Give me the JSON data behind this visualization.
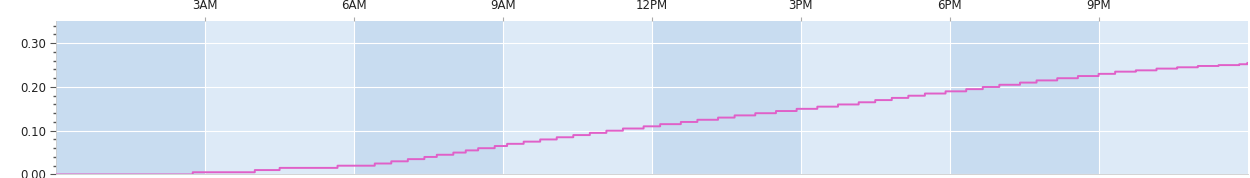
{
  "title": "",
  "xlabel": "",
  "ylabel": "",
  "xlim": [
    0,
    1440
  ],
  "ylim": [
    0.0,
    0.35
  ],
  "yticks": [
    0.0,
    0.1,
    0.2,
    0.3
  ],
  "ytick_labels": [
    "0.00",
    "0.10",
    "0.20",
    "0.30"
  ],
  "xticks": [
    180,
    360,
    540,
    720,
    900,
    1080,
    1260
  ],
  "xtick_labels": [
    "3AM",
    "6AM",
    "9AM",
    "12PM",
    "3PM",
    "6PM",
    "9PM"
  ],
  "line_color": "#e060c8",
  "line_width": 1.4,
  "bg_color": "#ddeaf7",
  "fig_bg_color": "#ffffff",
  "grid_color": "#ffffff",
  "band_colors": [
    "#c8dcf0",
    "#ddeaf7"
  ],
  "band_edges": [
    0,
    180,
    360,
    540,
    720,
    900,
    1080,
    1260,
    1440
  ],
  "step_times": [
    0,
    150,
    165,
    210,
    240,
    255,
    270,
    295,
    315,
    340,
    360,
    385,
    405,
    425,
    445,
    460,
    480,
    495,
    510,
    530,
    545,
    565,
    585,
    605,
    625,
    645,
    665,
    685,
    710,
    730,
    755,
    775,
    800,
    820,
    845,
    870,
    895,
    920,
    945,
    970,
    990,
    1010,
    1030,
    1050,
    1075,
    1100,
    1120,
    1140,
    1165,
    1185,
    1210,
    1235,
    1260,
    1280,
    1305,
    1330,
    1355,
    1380,
    1405,
    1430,
    1440
  ],
  "step_vals": [
    0.0,
    0.0,
    0.005,
    0.005,
    0.01,
    0.01,
    0.015,
    0.015,
    0.015,
    0.02,
    0.02,
    0.025,
    0.03,
    0.035,
    0.04,
    0.045,
    0.05,
    0.055,
    0.06,
    0.065,
    0.07,
    0.075,
    0.08,
    0.085,
    0.09,
    0.095,
    0.1,
    0.105,
    0.11,
    0.115,
    0.12,
    0.125,
    0.13,
    0.135,
    0.14,
    0.145,
    0.15,
    0.155,
    0.16,
    0.165,
    0.17,
    0.175,
    0.18,
    0.185,
    0.19,
    0.195,
    0.2,
    0.205,
    0.21,
    0.215,
    0.22,
    0.225,
    0.23,
    0.235,
    0.238,
    0.242,
    0.245,
    0.248,
    0.25,
    0.252,
    0.255
  ]
}
